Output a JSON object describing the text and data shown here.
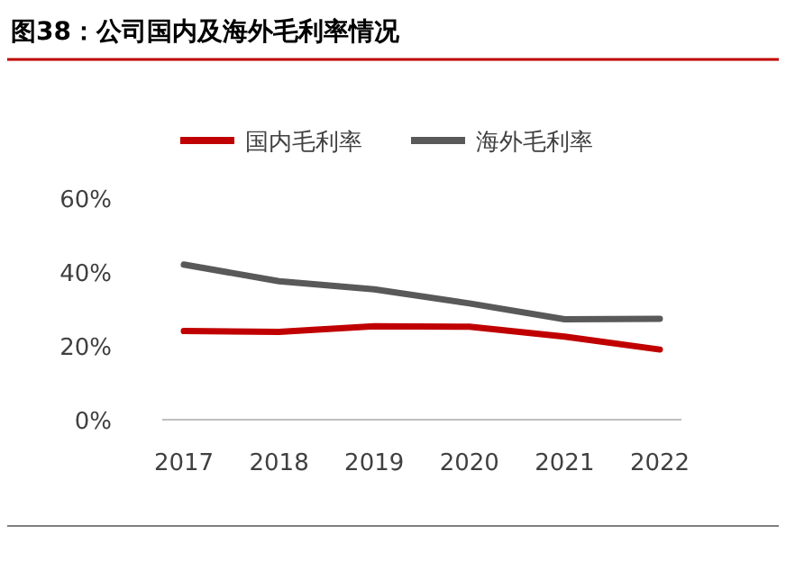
{
  "chart_data": {
    "type": "line",
    "title": "图38：公司国内及海外毛利率情况",
    "categories": [
      "2017",
      "2018",
      "2019",
      "2020",
      "2021",
      "2022"
    ],
    "series": [
      {
        "name": "国内毛利率",
        "color": "#c00000",
        "values": [
          24.0,
          23.8,
          25.3,
          25.2,
          22.5,
          19.0
        ]
      },
      {
        "name": "海外毛利率",
        "color": "#595959",
        "values": [
          42.0,
          37.5,
          35.3,
          31.5,
          27.2,
          27.3
        ]
      }
    ],
    "ylim": [
      0,
      60
    ],
    "yticks": [
      {
        "value": 0,
        "label": "0%"
      },
      {
        "value": 20,
        "label": "20%"
      },
      {
        "value": 40,
        "label": "40%"
      },
      {
        "value": 60,
        "label": "60%"
      }
    ],
    "grid": false,
    "legend": "top",
    "marker": "none",
    "line_style": "solid"
  }
}
